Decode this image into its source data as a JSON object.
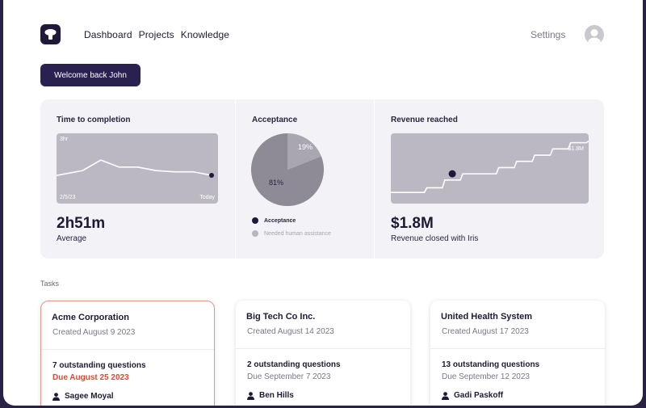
{
  "header": {
    "logo_icon": "brand-logo-icon",
    "nav": [
      "Dashboard",
      "Projects",
      "Knowledge"
    ],
    "settings_label": "Settings",
    "avatar_icon": "user-avatar-icon"
  },
  "welcome_label": "Welcome back John",
  "stats": {
    "time": {
      "title": "Time to completion",
      "value": "2h51m",
      "sub": "Average",
      "chart_top_label": "3hr",
      "chart_start_label": "2/5/23",
      "chart_end_label": "Today"
    },
    "acceptance": {
      "title": "Acceptance",
      "slice_small_label": "19%",
      "slice_large_label": "81%",
      "legend": [
        {
          "label": "Acceptance",
          "color": "#1f1838"
        },
        {
          "label": "Needed human assistance",
          "color": "#b8b5be"
        }
      ]
    },
    "revenue": {
      "title": "Revenue reached",
      "value": "$1.8M",
      "sub": "Revenue closed with Iris",
      "chart_label": "$1.8M"
    }
  },
  "chart_data": [
    {
      "type": "line",
      "title": "Time to completion",
      "xlabel": "",
      "ylabel": "",
      "x": [
        "2/5/23",
        "p2",
        "p3",
        "p4",
        "p5",
        "p6",
        "p7",
        "Today"
      ],
      "y": [
        1.2,
        1.65,
        1.35,
        1.35,
        1.2,
        1.15,
        1.15,
        1.0
      ],
      "ylim": [
        0,
        3
      ],
      "tick_labels": [
        "3hr",
        "2/5/23",
        "Today"
      ]
    },
    {
      "type": "pie",
      "title": "Acceptance",
      "labels": [
        "Acceptance",
        "Needed human assistance"
      ],
      "values": [
        81,
        19
      ]
    },
    {
      "type": "line",
      "title": "Revenue reached",
      "x": [
        0,
        1,
        2,
        3,
        4,
        5,
        6,
        7,
        8,
        9,
        10,
        11
      ],
      "y": [
        0.15,
        0.15,
        0.3,
        0.55,
        0.75,
        0.75,
        0.95,
        1.15,
        1.35,
        1.55,
        1.75,
        1.8
      ],
      "ylim": [
        0,
        2
      ],
      "tick_labels": [
        "$1.8M"
      ]
    }
  ],
  "tasks": {
    "label": "Tasks",
    "cards": [
      {
        "name": "Acme Corporation",
        "created": "Created August 9 2023",
        "questions": "7 outstanding questions",
        "due": "Due August 25 2023",
        "assignee": "Sagee Moyal",
        "overdue": true
      },
      {
        "name": "Big Tech Co Inc.",
        "created": "Created August 14 2023",
        "questions": "2 outstanding questions",
        "due": "Due September 7 2023",
        "assignee": "Ben Hills",
        "overdue": false
      },
      {
        "name": "United Health System",
        "created": "Created August 17 2023",
        "questions": "13 outstanding questions",
        "due": "Due September 12 2023",
        "assignee": "Gadi Paskoff",
        "overdue": false
      }
    ]
  },
  "colors": {
    "brand": "#1f1838",
    "overdue": "#e0473a",
    "panel": "#f3f2f6",
    "chart_bg": "#bcb8c3"
  }
}
